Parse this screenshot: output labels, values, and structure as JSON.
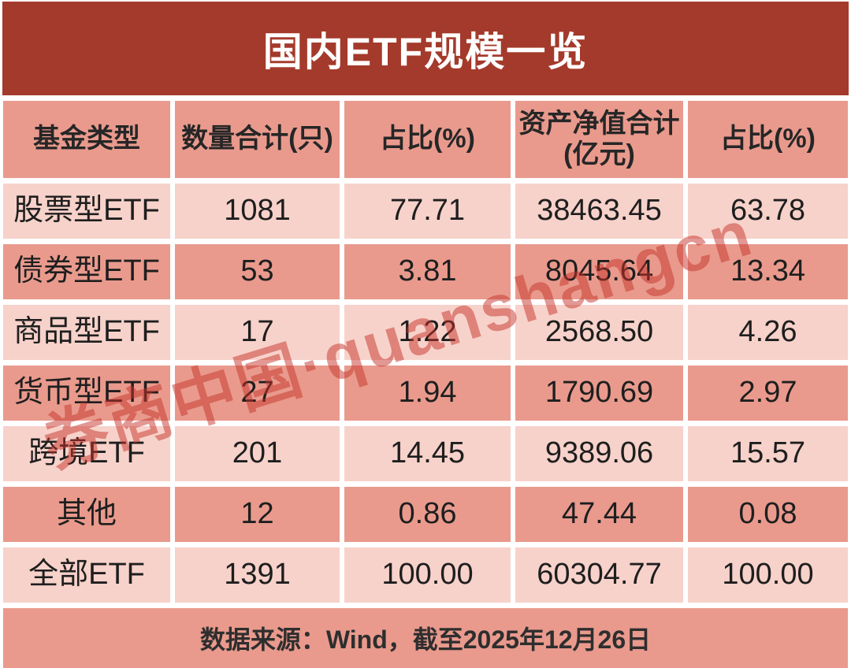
{
  "title": "国内ETF规模一览",
  "colors": {
    "title_bar_red": "#a43a2b",
    "row_salmon_dark": "#e99a8d",
    "row_pink_light": "#f7d2ca",
    "divider_white": "#ffffff",
    "text_dark": "#1e1e1e",
    "watermark_red": "rgba(198,50,41,0.5)"
  },
  "table": {
    "columns": [
      {
        "label": "基金类型"
      },
      {
        "label": "数量合计(只)"
      },
      {
        "label": "占比(%)"
      },
      {
        "label": "资产净值合计",
        "label2": "(亿元)"
      },
      {
        "label": "占比(%)"
      }
    ],
    "rows": [
      {
        "type": "股票型ETF",
        "count": "1081",
        "count_pct": "77.71",
        "nav": "38463.45",
        "nav_pct": "63.78"
      },
      {
        "type": "债券型ETF",
        "count": "53",
        "count_pct": "3.81",
        "nav": "8045.64",
        "nav_pct": "13.34"
      },
      {
        "type": "商品型ETF",
        "count": "17",
        "count_pct": "1.22",
        "nav": "2568.50",
        "nav_pct": "4.26"
      },
      {
        "type": "货币型ETF",
        "count": "27",
        "count_pct": "1.94",
        "nav": "1790.69",
        "nav_pct": "2.97"
      },
      {
        "type": "跨境ETF",
        "count": "201",
        "count_pct": "14.45",
        "nav": "9389.06",
        "nav_pct": "15.57"
      },
      {
        "type": "其他",
        "count": "12",
        "count_pct": "0.86",
        "nav": "47.44",
        "nav_pct": "0.08"
      },
      {
        "type": "全部ETF",
        "count": "1391",
        "count_pct": "100.00",
        "nav": "60304.77",
        "nav_pct": "100.00"
      }
    ]
  },
  "footer": {
    "source_note": "数据来源：Wind，截至2025年12月26日"
  },
  "watermark": {
    "text": "券商中国·quanshangcn"
  },
  "chart_data": {
    "type": "table",
    "title": "国内ETF规模一览",
    "columns": [
      "基金类型",
      "数量合计(只)",
      "占比(%)",
      "资产净值合计(亿元)",
      "占比(%)"
    ],
    "rows": [
      [
        "股票型ETF",
        1081,
        77.71,
        38463.45,
        63.78
      ],
      [
        "债券型ETF",
        53,
        3.81,
        8045.64,
        13.34
      ],
      [
        "商品型ETF",
        17,
        1.22,
        2568.5,
        4.26
      ],
      [
        "货币型ETF",
        27,
        1.94,
        1790.69,
        2.97
      ],
      [
        "跨境ETF",
        201,
        14.45,
        9389.06,
        15.57
      ],
      [
        "其他",
        12,
        0.86,
        47.44,
        0.08
      ],
      [
        "全部ETF",
        1391,
        100.0,
        60304.77,
        100.0
      ]
    ],
    "source_note": "数据来源：Wind，截至2025年12月26日"
  }
}
